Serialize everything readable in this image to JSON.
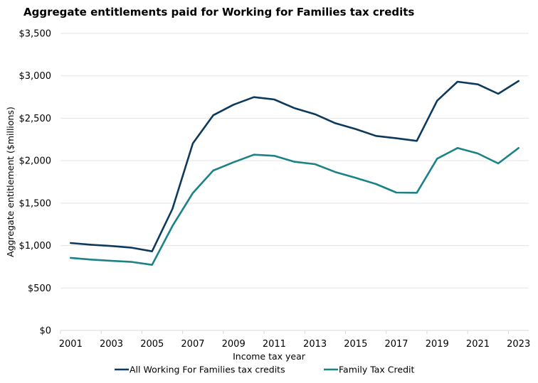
{
  "chart_data": {
    "type": "line",
    "title": "Aggregate entitlements paid for Working for Families tax credits",
    "xlabel": "Income tax year",
    "ylabel": "Aggregate entitlement ($millions)",
    "ylim": [
      0,
      3500
    ],
    "y_ticks": [
      0,
      500,
      1000,
      1500,
      2000,
      2500,
      3000,
      3500
    ],
    "y_tick_labels": [
      "$0",
      "$500",
      "$1,000",
      "$1,500",
      "$2,000",
      "$2,500",
      "$3,000",
      "$3,500"
    ],
    "x": [
      2001,
      2002,
      2003,
      2004,
      2005,
      2006,
      2007,
      2008,
      2009,
      2010,
      2011,
      2012,
      2013,
      2014,
      2015,
      2016,
      2017,
      2018,
      2019,
      2020,
      2021,
      2022,
      2023
    ],
    "x_tick_labels": [
      "2001",
      "2003",
      "2005",
      "2007",
      "2009",
      "2011",
      "2013",
      "2015",
      "2017",
      "2019",
      "2021",
      "2023"
    ],
    "grid": "horizontal",
    "legend_position": "bottom",
    "series": [
      {
        "name": "All Working For Families tax credits",
        "color": "#0d3a5c",
        "values": [
          1030,
          1010,
          995,
          975,
          932,
          1432,
          2205,
          2535,
          2660,
          2749,
          2721,
          2618,
          2548,
          2442,
          2373,
          2292,
          2264,
          2233,
          2707,
          2931,
          2900,
          2788,
          2939
        ]
      },
      {
        "name": "Family Tax Credit",
        "color": "#1b8287",
        "values": [
          855,
          835,
          820,
          807,
          773,
          1230,
          1619,
          1884,
          1982,
          2071,
          2057,
          1987,
          1959,
          1866,
          1798,
          1725,
          1624,
          1622,
          2024,
          2149,
          2085,
          1968,
          2149
        ]
      }
    ]
  }
}
